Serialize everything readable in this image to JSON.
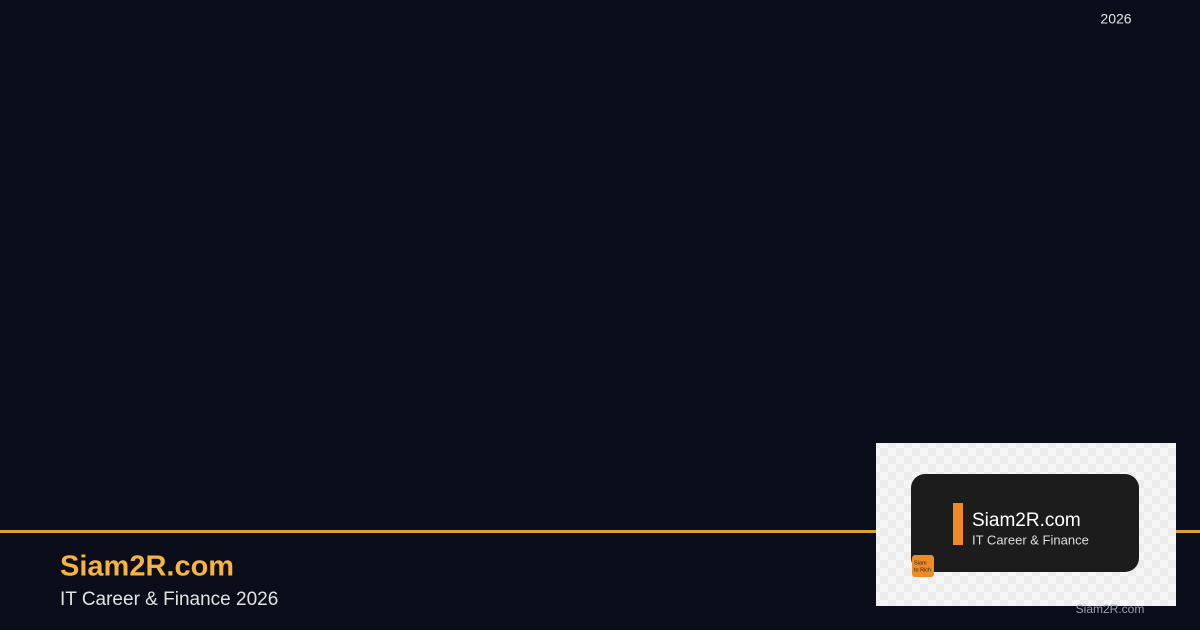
{
  "header": {
    "year": "2026"
  },
  "brand": {
    "title": "Siam2R.com",
    "subtitle": "IT Career & Finance 2026"
  },
  "badge": {
    "title": "Siam2R.com",
    "subtitle": "IT Career & Finance",
    "logo": [
      "Siam",
      "to Rich"
    ]
  },
  "footer": {
    "watermark": "Siam2R.com"
  }
}
